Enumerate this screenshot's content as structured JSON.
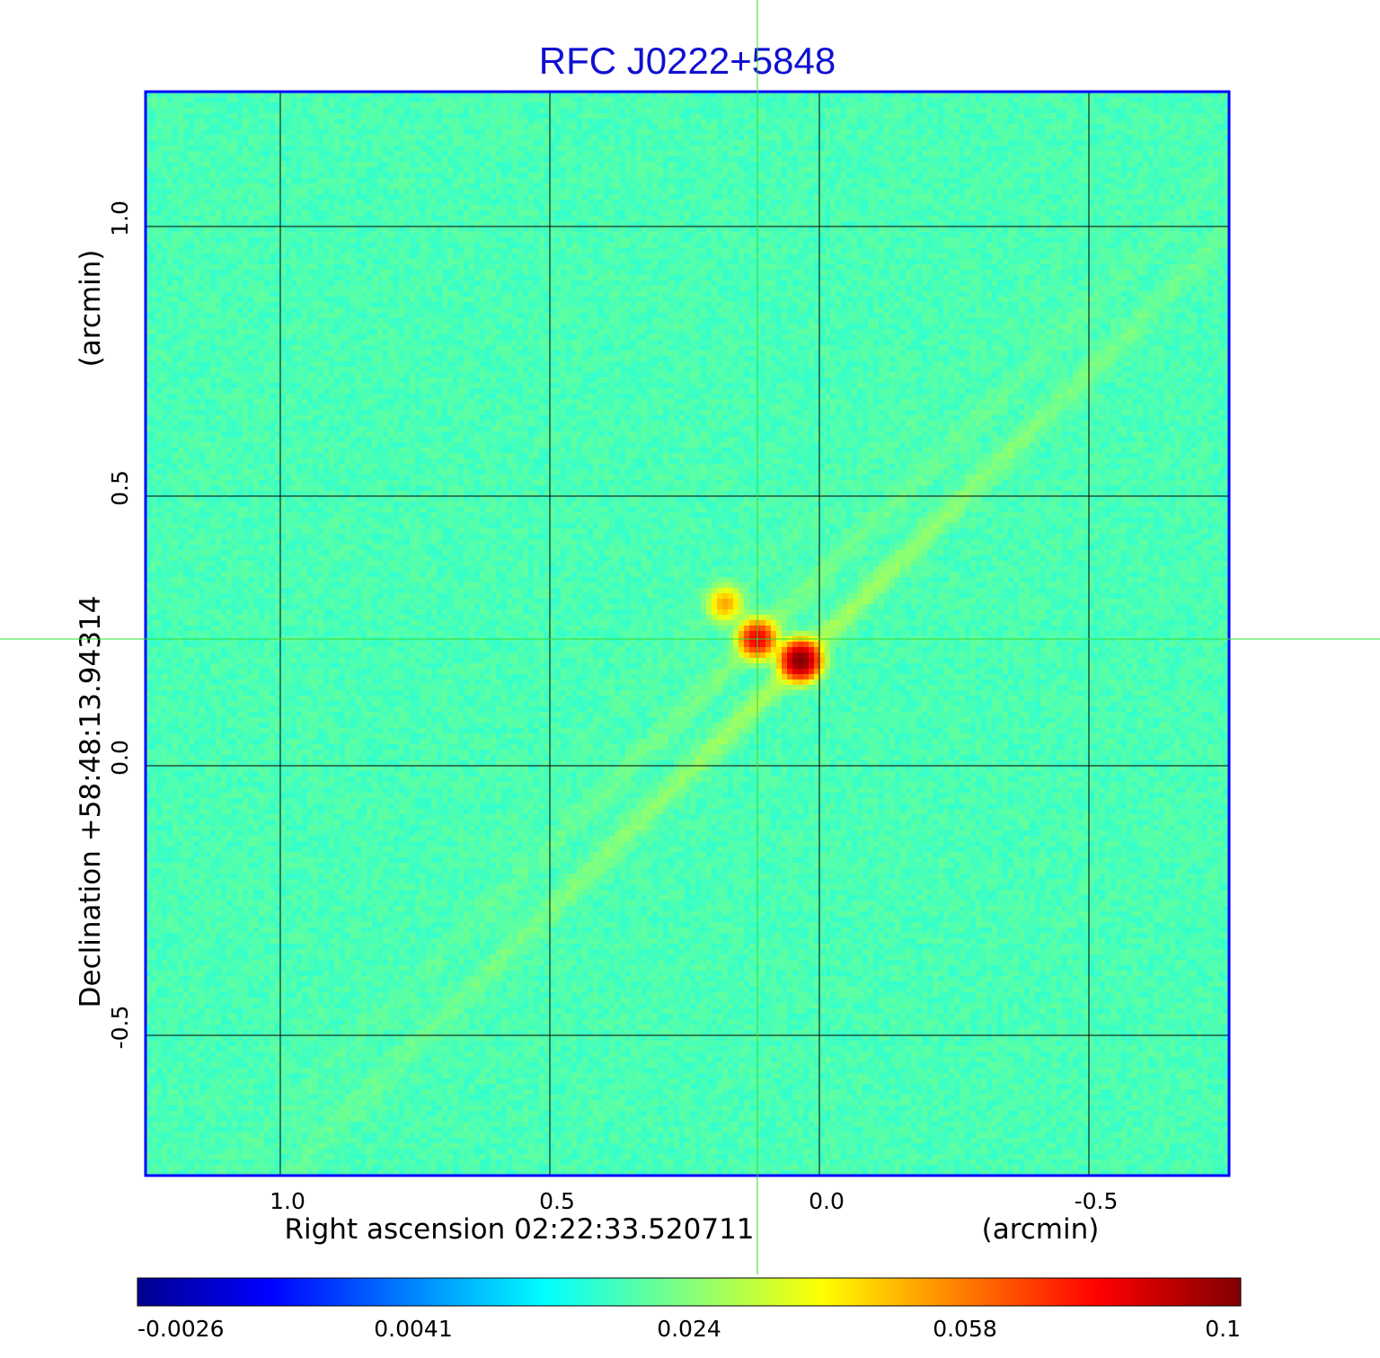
{
  "chart_data": {
    "type": "heatmap",
    "title": "RFC J0222+5848",
    "xaxis": {
      "label": "Right ascension  02:22:33.520711",
      "unit_label": "(arcmin)",
      "range": [
        1.25,
        -0.76
      ],
      "ticks": [
        1.0,
        0.5,
        0.0,
        -0.5
      ],
      "tick_labels": [
        "1.0",
        "0.5",
        "0.0",
        "-0.5"
      ]
    },
    "yaxis": {
      "label": "Declination  +58:48:13.94314",
      "unit_label": "(arcmin)",
      "range": [
        -0.76,
        1.25
      ],
      "ticks": [
        1.0,
        0.5,
        0.0,
        -0.5
      ],
      "tick_labels": [
        "1.0",
        "0.5",
        "0.0",
        "-0.5"
      ]
    },
    "grid": true,
    "crosshair": {
      "x": 0.115,
      "y": 0.235
    },
    "background_value": -0.0005,
    "colorbar": {
      "orientation": "horizontal",
      "placement": "bottom",
      "tick_labels": [
        "-0.0026",
        "0.0041",
        "0.024",
        "0.058",
        "0.1"
      ],
      "min": -0.0026,
      "max": 0.1,
      "colormap": [
        "#00008f",
        "#0000ff",
        "#00ffff",
        "#ffff00",
        "#ff0000",
        "#800000"
      ]
    },
    "components": [
      {
        "x": 0.035,
        "y": 0.195,
        "peak": 0.1
      },
      {
        "x": 0.115,
        "y": 0.235,
        "peak": 0.045
      },
      {
        "x": 0.175,
        "y": 0.3,
        "peak": 0.011
      }
    ]
  },
  "colors": {
    "title": "#1010d0",
    "frame": "#0000ff",
    "crosshair": "#33dd33",
    "grid": "#000000"
  }
}
